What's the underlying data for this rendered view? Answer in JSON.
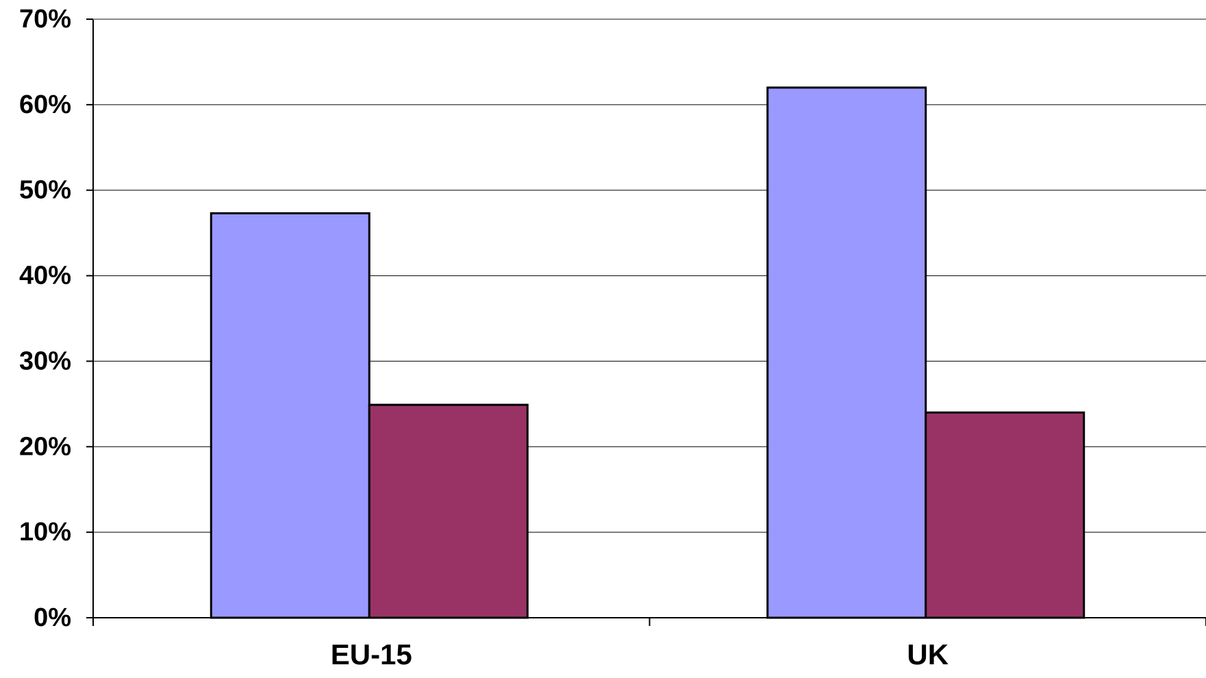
{
  "chart_data": {
    "type": "bar",
    "title": "",
    "xlabel": "",
    "ylabel": "",
    "categories": [
      "EU-15",
      "UK"
    ],
    "series": [
      {
        "color": "#9999ff",
        "values": [
          47.3,
          62.0
        ]
      },
      {
        "color": "#993366",
        "values": [
          24.9,
          24.0
        ]
      }
    ],
    "ylim": [
      0,
      70
    ],
    "yticks": [
      0,
      10,
      20,
      30,
      40,
      50,
      60,
      70
    ],
    "ytick_labels": [
      "0%",
      "10%",
      "20%",
      "30%",
      "40%",
      "50%",
      "60%",
      "70%"
    ],
    "grid": true,
    "legend": "none"
  }
}
